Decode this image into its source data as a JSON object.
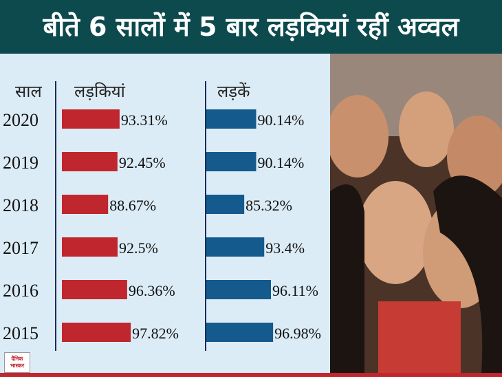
{
  "title": "बीते 6 सालों में 5 बार लड़कियां रहीं अव्वल",
  "headers": {
    "year": "साल",
    "girls": "लड़कियां",
    "boys": "लड़कें"
  },
  "logo_text": "दैनिक भास्कर",
  "colors": {
    "header_bg": "#0c4a4e",
    "panel_bg": "#dcecf6",
    "girls": "#c0262d",
    "boys": "#145a8c",
    "accent_line": "#c0262d"
  },
  "chart_data": {
    "type": "bar",
    "categories": [
      "2020",
      "2019",
      "2018",
      "2017",
      "2016",
      "2015"
    ],
    "series": [
      {
        "name": "लड़कियां",
        "values": [
          93.31,
          92.45,
          88.67,
          92.5,
          96.36,
          97.82
        ],
        "labels": [
          "93.31%",
          "92.45%",
          "88.67%",
          "92.5%",
          "96.36%",
          "97.82%"
        ]
      },
      {
        "name": "लड़कें",
        "values": [
          90.14,
          90.14,
          85.32,
          93.4,
          96.11,
          96.98
        ],
        "labels": [
          "90.14%",
          "90.14%",
          "85.32%",
          "93.4%",
          "96.11%",
          "96.98%"
        ]
      }
    ],
    "unit": "%"
  }
}
